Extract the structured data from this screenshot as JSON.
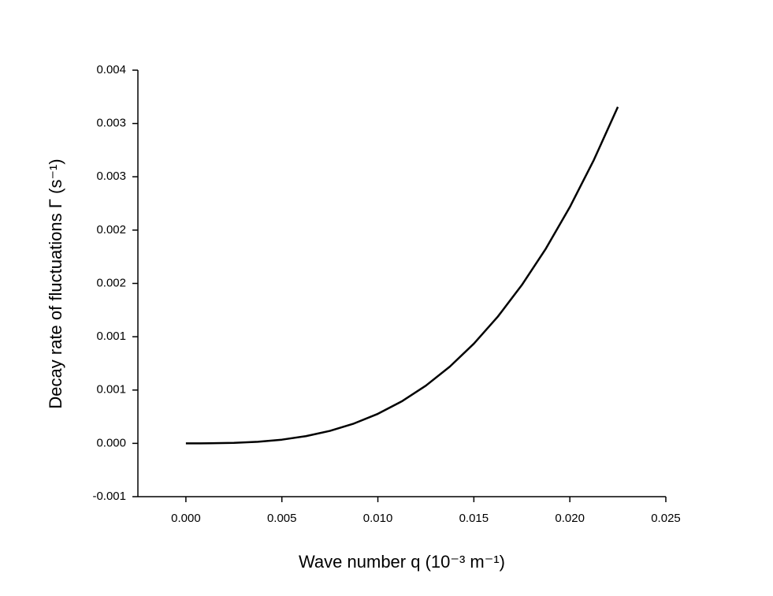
{
  "chart_data": {
    "type": "line",
    "xlabel": "Wave number q (10⁻³ m⁻¹)",
    "ylabel": "Decay rate of fluctuations Γ (s⁻¹)",
    "x": [
      0,
      0.00125,
      0.0025,
      0.00375,
      0.005,
      0.00625,
      0.0075,
      0.00875,
      0.01,
      0.01125,
      0.0125,
      0.01375,
      0.015,
      0.01625,
      0.0175,
      0.01875,
      0.02,
      0.02125,
      0.0225
    ],
    "series": [
      {
        "color": "#000000",
        "values": [
          0,
          5.4e-07,
          4.3e-06,
          1.46e-05,
          3.46e-05,
          6.76e-05,
          0.0001169,
          0.0001856,
          0.000277,
          0.0003944,
          0.000541,
          0.00072,
          0.000935,
          0.001189,
          0.001485,
          0.001826,
          0.002216,
          0.002658,
          0.003155
        ]
      }
    ],
    "xlim": [
      -0.0025,
      0.025
    ],
    "xticks": [
      {
        "value": 0,
        "label": "0.000"
      },
      {
        "value": 0.005,
        "label": "0.005"
      },
      {
        "value": 0.01,
        "label": "0.010"
      },
      {
        "value": 0.015,
        "label": "0.015"
      },
      {
        "value": 0.02,
        "label": "0.020"
      },
      {
        "value": 0.025,
        "label": "0.025"
      }
    ],
    "ylim": [
      -0.0005,
      0.0035
    ],
    "yticks": [
      {
        "value": -0.0005,
        "label": "-0.001"
      },
      {
        "value": 0,
        "label": "0.000"
      },
      {
        "value": 0.0005,
        "label": "0.001"
      },
      {
        "value": 0.001,
        "label": "0.001"
      },
      {
        "value": 0.0015,
        "label": "0.002"
      },
      {
        "value": 0.002,
        "label": "0.002"
      },
      {
        "value": 0.0025,
        "label": "0.003"
      },
      {
        "value": 0.003,
        "label": "0.003"
      },
      {
        "value": 0.0035,
        "label": "0.004"
      }
    ],
    "grid": false
  }
}
